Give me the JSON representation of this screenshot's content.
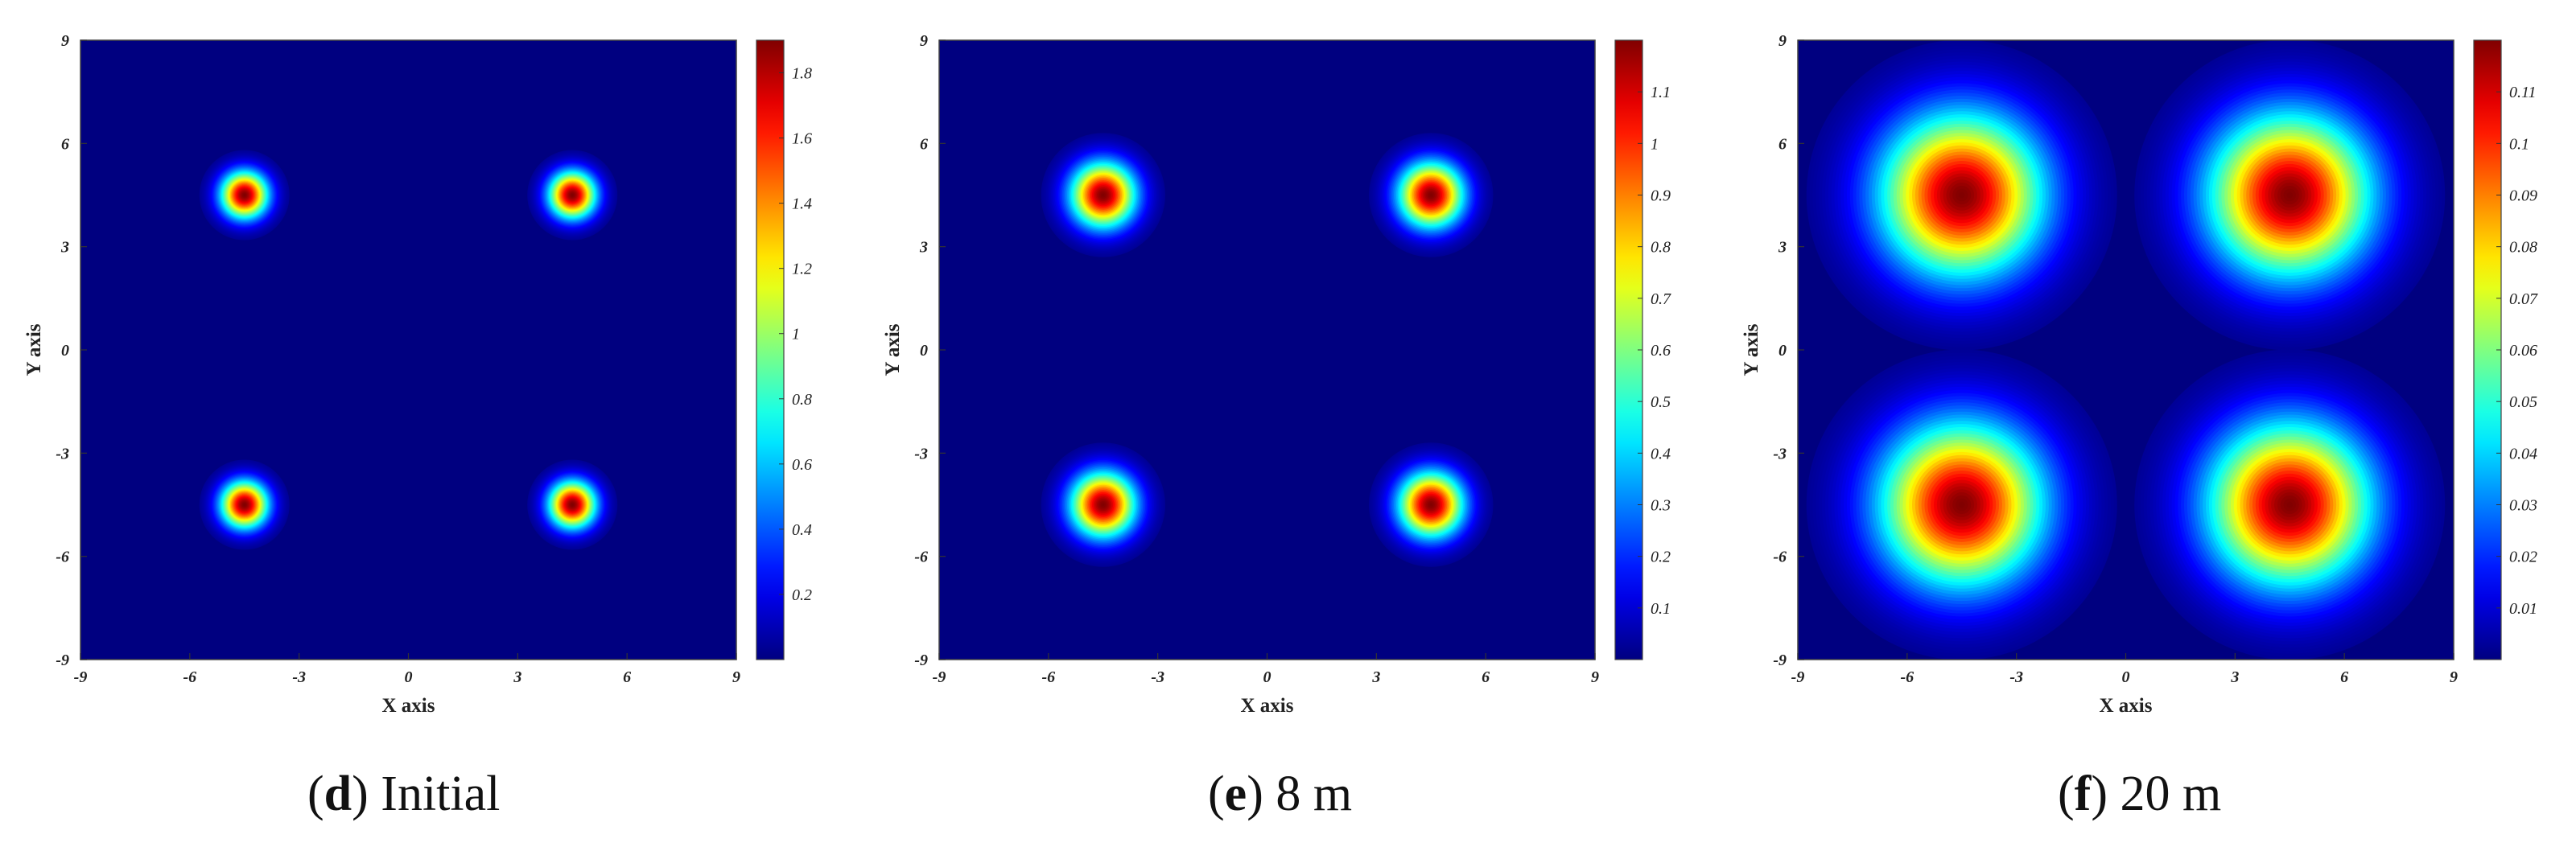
{
  "colormap": "jet",
  "chart_data": [
    {
      "type": "heatmap",
      "caption_letter": "d",
      "caption_text": "Initial",
      "xlabel": "X axis",
      "ylabel": "Y axis",
      "xlim": [
        -9,
        9
      ],
      "ylim": [
        -9,
        9
      ],
      "xticks": [
        -9,
        -6,
        -3,
        0,
        3,
        6,
        9
      ],
      "yticks": [
        -9,
        -6,
        -3,
        0,
        3,
        6,
        9
      ],
      "peaks": [
        {
          "x": -4.5,
          "y": 4.5,
          "value": 1.9
        },
        {
          "x": 4.5,
          "y": 4.5,
          "value": 1.9
        },
        {
          "x": -4.5,
          "y": -4.5,
          "value": 1.9
        },
        {
          "x": 4.5,
          "y": -4.5,
          "value": 1.9
        }
      ],
      "spread_sigma": 0.45,
      "colorbar": {
        "min": 0,
        "max": 1.9,
        "ticks": [
          0.2,
          0.4,
          0.6,
          0.8,
          1,
          1.2,
          1.4,
          1.6,
          1.8
        ]
      }
    },
    {
      "type": "heatmap",
      "caption_letter": "e",
      "caption_text": "8 m",
      "xlabel": "X axis",
      "ylabel": "Y axis",
      "xlim": [
        -9,
        9
      ],
      "ylim": [
        -9,
        9
      ],
      "xticks": [
        -9,
        -6,
        -3,
        0,
        3,
        6,
        9
      ],
      "yticks": [
        -9,
        -6,
        -3,
        0,
        3,
        6,
        9
      ],
      "peaks": [
        {
          "x": -4.5,
          "y": 4.5,
          "value": 1.2
        },
        {
          "x": 4.5,
          "y": 4.5,
          "value": 1.2
        },
        {
          "x": -4.5,
          "y": -4.5,
          "value": 1.2
        },
        {
          "x": 4.5,
          "y": -4.5,
          "value": 1.2
        }
      ],
      "spread_sigma": 0.62,
      "colorbar": {
        "min": 0,
        "max": 1.2,
        "ticks": [
          0.1,
          0.2,
          0.3,
          0.4,
          0.5,
          0.6,
          0.7,
          0.8,
          0.9,
          1,
          1.1
        ]
      }
    },
    {
      "type": "heatmap",
      "caption_letter": "f",
      "caption_text": "20 m",
      "xlabel": "X axis",
      "ylabel": "Y axis",
      "xlim": [
        -9,
        9
      ],
      "ylim": [
        -9,
        9
      ],
      "xticks": [
        -9,
        -6,
        -3,
        0,
        3,
        6,
        9
      ],
      "yticks": [
        -9,
        -6,
        -3,
        0,
        3,
        6,
        9
      ],
      "peaks": [
        {
          "x": -4.5,
          "y": 4.5,
          "value": 0.12
        },
        {
          "x": 4.5,
          "y": 4.5,
          "value": 0.12
        },
        {
          "x": -4.5,
          "y": -4.5,
          "value": 0.12
        },
        {
          "x": 4.5,
          "y": -4.5,
          "value": 0.12
        }
      ],
      "spread_sigma": 1.55,
      "colorbar": {
        "min": 0,
        "max": 0.12,
        "ticks": [
          0.01,
          0.02,
          0.03,
          0.04,
          0.05,
          0.06,
          0.07,
          0.08,
          0.09,
          0.1,
          0.11
        ]
      }
    }
  ]
}
